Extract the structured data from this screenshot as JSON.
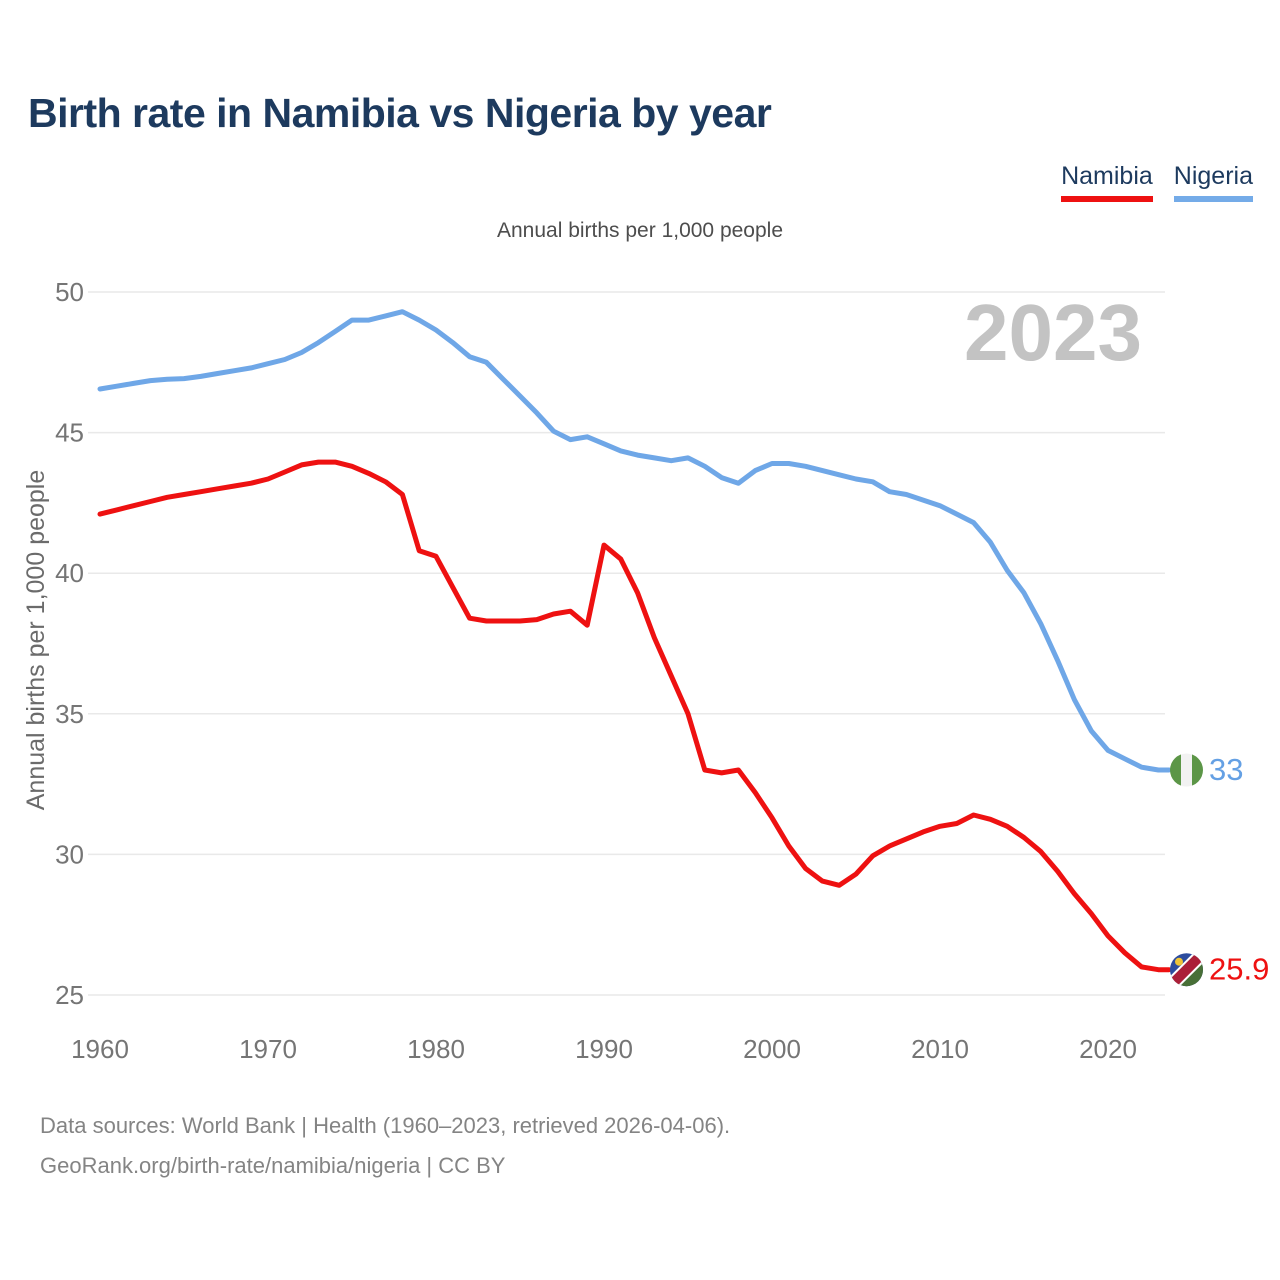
{
  "title": "Birth rate in Namibia vs Nigeria by year",
  "subtitle": "Annual births per 1,000 people",
  "watermark": "2023",
  "legend": [
    {
      "label": "Namibia",
      "color": "#ee1111"
    },
    {
      "label": "Nigeria",
      "color": "#74abe8"
    }
  ],
  "footer": {
    "line1": "Data sources: World Bank | Health (1960–2023, retrieved 2026-04-06).",
    "line2": "GeoRank.org/birth-rate/namibia/nigeria | CC BY"
  },
  "colors": {
    "namibia_line": "#ee1111",
    "nigeria_line": "#6fa7e7",
    "namibia_end_label": "#ee1111",
    "nigeria_end_label": "#64a0e4",
    "grid": "#e9e9e9",
    "tick_text": "#757575",
    "axis_title_text": "#6b6b6b",
    "watermark_text": "#c3c3c3"
  },
  "flags": {
    "nigeria": {
      "green": "#5c9647",
      "white": "#f2f2f2"
    },
    "namibia": {
      "blue": "#2c4c9e",
      "red": "#ab1f38",
      "green": "#486f37",
      "white": "#ffffff",
      "sun": "#eec437"
    }
  },
  "chart_data": {
    "type": "line",
    "title": "Birth rate in Namibia vs Nigeria by year",
    "ylabel": "Annual births per 1,000 people",
    "xlim": [
      1960,
      2023
    ],
    "ylim": [
      25,
      50
    ],
    "y_ticks": [
      25,
      30,
      35,
      40,
      45,
      50
    ],
    "x_ticks": [
      1960,
      1970,
      1980,
      1990,
      2000,
      2010,
      2020
    ],
    "grid": "horizontal",
    "legend_position": "top-right",
    "x_start": 1960,
    "x_step": 1,
    "series": [
      {
        "name": "Namibia",
        "end_label": "25.9",
        "values": [
          42.1,
          42.25,
          42.4,
          42.55,
          42.7,
          42.8,
          42.9,
          43.0,
          43.1,
          43.2,
          43.35,
          43.6,
          43.85,
          43.95,
          43.95,
          43.8,
          43.55,
          43.25,
          42.8,
          40.8,
          40.6,
          39.5,
          38.4,
          38.3,
          38.3,
          38.3,
          38.35,
          38.55,
          38.65,
          38.15,
          41.0,
          40.5,
          39.3,
          37.7,
          36.35,
          35.0,
          33.0,
          32.9,
          33.0,
          32.2,
          31.3,
          30.3,
          29.5,
          29.05,
          28.9,
          29.3,
          29.95,
          30.3,
          30.55,
          30.8,
          31.0,
          31.1,
          31.4,
          31.25,
          31.0,
          30.6,
          30.1,
          29.4,
          28.6,
          27.9,
          27.1,
          26.5,
          26.0,
          25.9
        ]
      },
      {
        "name": "Nigeria",
        "end_label": "33",
        "values": [
          46.55,
          46.65,
          46.75,
          46.85,
          46.9,
          46.92,
          47.0,
          47.1,
          47.2,
          47.3,
          47.45,
          47.6,
          47.85,
          48.2,
          48.6,
          49.0,
          49.0,
          49.15,
          49.3,
          49.0,
          48.65,
          48.2,
          47.7,
          47.5,
          46.9,
          46.3,
          45.7,
          45.05,
          44.75,
          44.85,
          44.6,
          44.35,
          44.2,
          44.1,
          44.0,
          44.1,
          43.8,
          43.4,
          43.2,
          43.65,
          43.9,
          43.9,
          43.8,
          43.65,
          43.5,
          43.35,
          43.25,
          42.9,
          42.8,
          42.6,
          42.4,
          42.1,
          41.8,
          41.1,
          40.1,
          39.3,
          38.2,
          36.9,
          35.5,
          34.4,
          33.7,
          33.4,
          33.1,
          33.0
        ]
      }
    ]
  }
}
